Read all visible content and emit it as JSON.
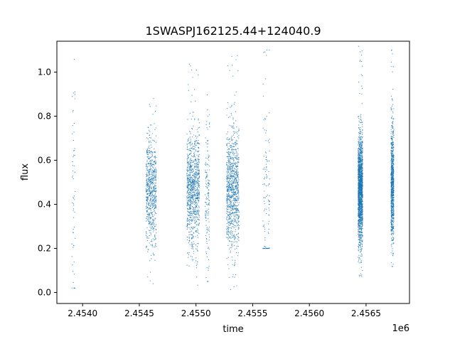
{
  "chart_data": {
    "type": "scatter",
    "title": "1SWASPJ162125.44+124040.9",
    "xlabel": "time",
    "ylabel": "flux",
    "x_offset_label": "1e6",
    "xlim": [
      2453773,
      2456883
    ],
    "ylim": [
      -0.05,
      1.14
    ],
    "grid": false,
    "legend": "none",
    "x_ticks": [
      {
        "value": 2454000,
        "label": "2.4540"
      },
      {
        "value": 2454500,
        "label": "2.4545"
      },
      {
        "value": 2455000,
        "label": "2.4550"
      },
      {
        "value": 2455500,
        "label": "2.4555"
      },
      {
        "value": 2456000,
        "label": "2.4560"
      },
      {
        "value": 2456500,
        "label": "2.4565"
      }
    ],
    "y_ticks": [
      {
        "value": 0.0,
        "label": "0.0"
      },
      {
        "value": 0.2,
        "label": "0.2"
      },
      {
        "value": 0.4,
        "label": "0.4"
      },
      {
        "value": 0.6,
        "label": "0.6"
      },
      {
        "value": 0.8,
        "label": "0.8"
      },
      {
        "value": 1.0,
        "label": "1.0"
      }
    ],
    "marker_color": "#1f77b4",
    "observing_seasons": [
      {
        "x_start": 2453905,
        "x_end": 2453935,
        "y_center": 0.45,
        "y_spread": 0.3,
        "y_min": 0.02,
        "y_max": 1.08,
        "points": 60
      },
      {
        "x_start": 2454560,
        "x_end": 2454650,
        "y_center": 0.46,
        "y_spread": 0.12,
        "y_min": 0.04,
        "y_max": 0.88,
        "points": 700
      },
      {
        "x_start": 2454920,
        "x_end": 2455030,
        "y_center": 0.46,
        "y_spread": 0.13,
        "y_min": 0.03,
        "y_max": 1.08,
        "points": 1000
      },
      {
        "x_start": 2455080,
        "x_end": 2455120,
        "y_center": 0.46,
        "y_spread": 0.2,
        "y_min": 0.05,
        "y_max": 1.05,
        "points": 150
      },
      {
        "x_start": 2455270,
        "x_end": 2455380,
        "y_center": 0.46,
        "y_spread": 0.14,
        "y_min": 0.0,
        "y_max": 1.1,
        "points": 1000
      },
      {
        "x_start": 2455590,
        "x_end": 2455650,
        "y_center": 0.45,
        "y_spread": 0.25,
        "y_min": 0.2,
        "y_max": 1.1,
        "points": 120
      },
      {
        "x_start": 2456430,
        "x_end": 2456470,
        "y_center": 0.47,
        "y_spread": 0.12,
        "y_min": 0.06,
        "y_max": 1.12,
        "points": 1800
      },
      {
        "x_start": 2456720,
        "x_end": 2456745,
        "y_center": 0.48,
        "y_spread": 0.13,
        "y_min": 0.1,
        "y_max": 1.11,
        "points": 900
      }
    ]
  }
}
